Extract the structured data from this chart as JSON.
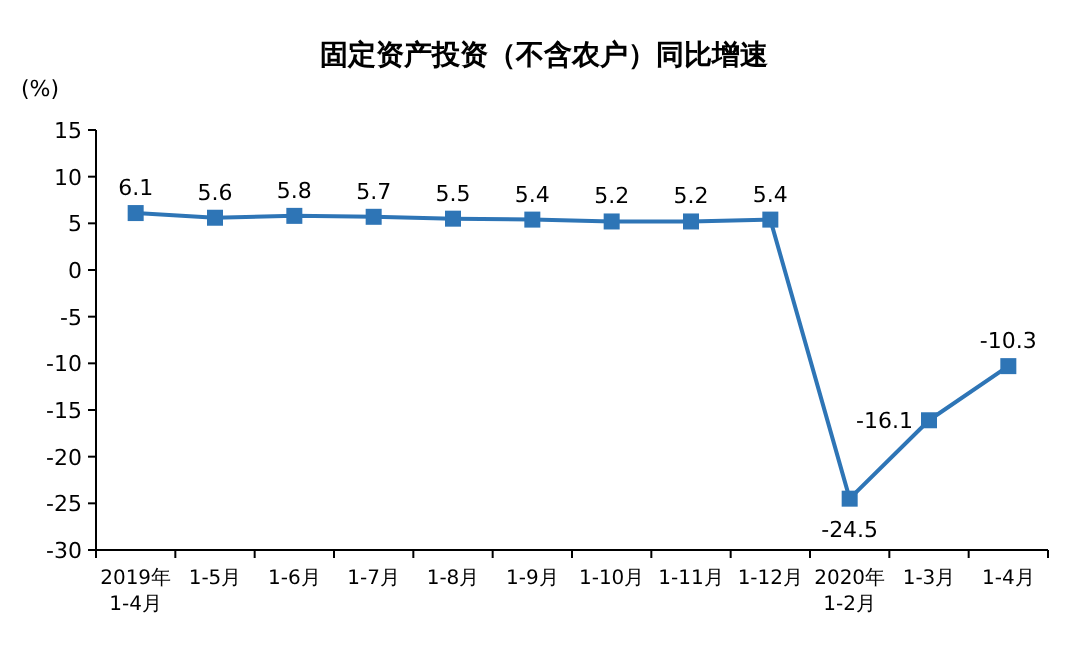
{
  "chart_data": {
    "type": "line",
    "title": "固定资产投资（不含农户）同比增速",
    "ylabel": "(%)",
    "categories": [
      "2019年\n1-4月",
      "1-5月",
      "1-6月",
      "1-7月",
      "1-8月",
      "1-9月",
      "1-10月",
      "1-11月",
      "1-12月",
      "2020年\n1-2月",
      "1-3月",
      "1-4月"
    ],
    "series": [
      {
        "color": "#2e75b6",
        "values": [
          6.1,
          5.6,
          5.8,
          5.7,
          5.5,
          5.4,
          5.2,
          5.2,
          5.4,
          -24.5,
          -16.1,
          -10.3
        ]
      }
    ],
    "ylim": [
      -30,
      15
    ],
    "yticks": [
      -30,
      -25,
      -20,
      -15,
      -10,
      -5,
      0,
      5,
      10,
      15
    ],
    "marker": "square",
    "line_style": "solid",
    "data_labels": true,
    "grid": false
  }
}
